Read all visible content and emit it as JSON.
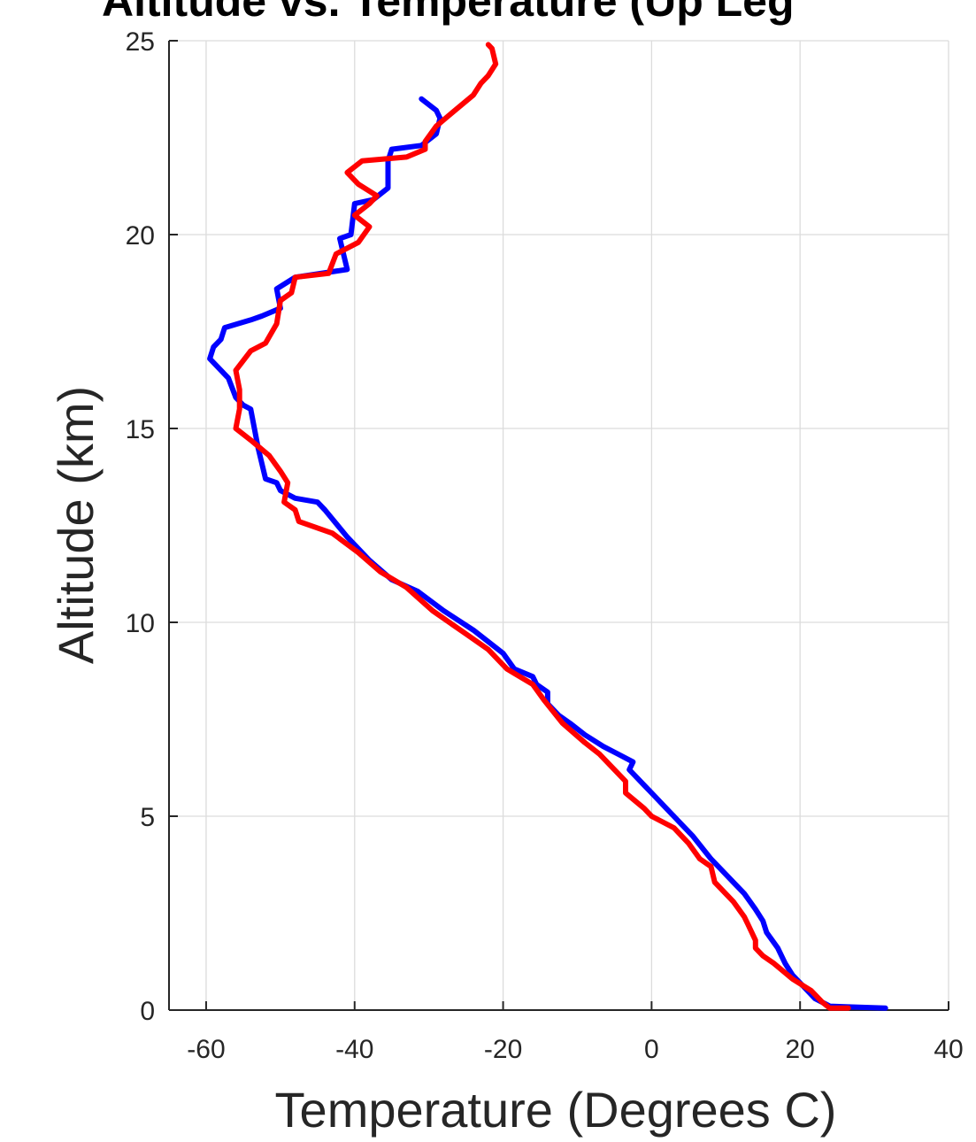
{
  "chart_data": {
    "type": "line",
    "title": "Altitude vs. Temperature (Up Leg",
    "xlabel": "Temperature (Degrees C)",
    "ylabel": "Altitude (km)",
    "xlim": [
      -65,
      40
    ],
    "ylim": [
      0,
      25
    ],
    "xticks": [
      -60,
      -40,
      -20,
      0,
      20,
      40
    ],
    "yticks": [
      0,
      5,
      10,
      15,
      20,
      25
    ],
    "xtick_labels": [
      "-60",
      "-40",
      "-20",
      "0",
      "20",
      "40"
    ],
    "ytick_labels": [
      "0",
      "5",
      "10",
      "15",
      "20",
      "25"
    ],
    "grid": true,
    "series": [
      {
        "color": "#0000ff",
        "points": [
          [
            31.5,
            0.05
          ],
          [
            27.0,
            0.08
          ],
          [
            24.0,
            0.1
          ],
          [
            22.0,
            0.3
          ],
          [
            20.5,
            0.6
          ],
          [
            19.0,
            0.9
          ],
          [
            18.0,
            1.2
          ],
          [
            17.0,
            1.6
          ],
          [
            15.5,
            2.0
          ],
          [
            15.0,
            2.3
          ],
          [
            14.0,
            2.6
          ],
          [
            12.5,
            3.0
          ],
          [
            11.0,
            3.3
          ],
          [
            9.0,
            3.7
          ],
          [
            8.0,
            3.9
          ],
          [
            5.5,
            4.5
          ],
          [
            3.5,
            4.9
          ],
          [
            1.5,
            5.3
          ],
          [
            0.0,
            5.6
          ],
          [
            -1.0,
            5.8
          ],
          [
            -3.0,
            6.2
          ],
          [
            -2.5,
            6.4
          ],
          [
            -4.5,
            6.6
          ],
          [
            -6.5,
            6.8
          ],
          [
            -9.0,
            7.1
          ],
          [
            -11.0,
            7.4
          ],
          [
            -12.5,
            7.6
          ],
          [
            -14.0,
            7.9
          ],
          [
            -14.0,
            8.2
          ],
          [
            -15.5,
            8.4
          ],
          [
            -16.0,
            8.6
          ],
          [
            -18.5,
            8.8
          ],
          [
            -20.0,
            9.2
          ],
          [
            -24.0,
            9.8
          ],
          [
            -28.0,
            10.3
          ],
          [
            -31.5,
            10.8
          ],
          [
            -35.0,
            11.1
          ],
          [
            -38.0,
            11.6
          ],
          [
            -41.0,
            12.2
          ],
          [
            -44.0,
            12.9
          ],
          [
            -45.0,
            13.1
          ],
          [
            -48.0,
            13.2
          ],
          [
            -50.0,
            13.4
          ],
          [
            -50.5,
            13.6
          ],
          [
            -52.0,
            13.7
          ],
          [
            -53.0,
            14.5
          ],
          [
            -54.0,
            15.5
          ],
          [
            -55.0,
            15.6
          ],
          [
            -56.0,
            15.8
          ],
          [
            -57.0,
            16.3
          ],
          [
            -59.5,
            16.8
          ],
          [
            -59.0,
            17.1
          ],
          [
            -58.0,
            17.3
          ],
          [
            -57.5,
            17.6
          ],
          [
            -54.0,
            17.8
          ],
          [
            -52.5,
            17.9
          ],
          [
            -50.0,
            18.1
          ],
          [
            -50.5,
            18.6
          ],
          [
            -48.0,
            18.9
          ],
          [
            -41.0,
            19.1
          ],
          [
            -42.0,
            19.9
          ],
          [
            -40.5,
            20.0
          ],
          [
            -40.0,
            20.8
          ],
          [
            -37.5,
            20.9
          ],
          [
            -35.5,
            21.2
          ],
          [
            -35.5,
            21.9
          ],
          [
            -35.0,
            22.2
          ],
          [
            -31.0,
            22.3
          ],
          [
            -29.0,
            22.6
          ],
          [
            -28.5,
            23.0
          ],
          [
            -29.0,
            23.2
          ],
          [
            -31.0,
            23.5
          ]
        ]
      },
      {
        "color": "#ff0000",
        "points": [
          [
            26.5,
            0.05
          ],
          [
            24.0,
            0.05
          ],
          [
            23.0,
            0.2
          ],
          [
            21.5,
            0.5
          ],
          [
            19.0,
            0.8
          ],
          [
            16.5,
            1.2
          ],
          [
            15.0,
            1.4
          ],
          [
            14.0,
            1.6
          ],
          [
            14.0,
            1.8
          ],
          [
            13.0,
            2.2
          ],
          [
            12.5,
            2.4
          ],
          [
            11.0,
            2.8
          ],
          [
            8.5,
            3.3
          ],
          [
            8.0,
            3.7
          ],
          [
            6.5,
            3.9
          ],
          [
            5.0,
            4.3
          ],
          [
            3.0,
            4.7
          ],
          [
            0.0,
            5.0
          ],
          [
            -1.0,
            5.2
          ],
          [
            -3.5,
            5.6
          ],
          [
            -3.5,
            5.9
          ],
          [
            -5.0,
            6.2
          ],
          [
            -7.0,
            6.6
          ],
          [
            -9.0,
            6.9
          ],
          [
            -12.0,
            7.4
          ],
          [
            -14.5,
            8.0
          ],
          [
            -16.0,
            8.4
          ],
          [
            -19.5,
            8.8
          ],
          [
            -22.0,
            9.3
          ],
          [
            -25.0,
            9.7
          ],
          [
            -29.5,
            10.3
          ],
          [
            -33.0,
            10.9
          ],
          [
            -36.5,
            11.3
          ],
          [
            -39.5,
            11.8
          ],
          [
            -43.0,
            12.3
          ],
          [
            -47.5,
            12.6
          ],
          [
            -48.0,
            12.9
          ],
          [
            -49.5,
            13.1
          ],
          [
            -49.0,
            13.6
          ],
          [
            -50.0,
            13.9
          ],
          [
            -51.5,
            14.3
          ],
          [
            -54.0,
            14.7
          ],
          [
            -56.0,
            15.0
          ],
          [
            -55.5,
            15.5
          ],
          [
            -55.5,
            16.0
          ],
          [
            -56.0,
            16.5
          ],
          [
            -54.0,
            17.0
          ],
          [
            -52.0,
            17.2
          ],
          [
            -50.5,
            17.7
          ],
          [
            -50.0,
            18.3
          ],
          [
            -48.5,
            18.5
          ],
          [
            -48.0,
            18.9
          ],
          [
            -43.5,
            19.0
          ],
          [
            -42.5,
            19.5
          ],
          [
            -39.5,
            19.8
          ],
          [
            -38.0,
            20.2
          ],
          [
            -40.0,
            20.5
          ],
          [
            -38.0,
            20.8
          ],
          [
            -37.0,
            21.0
          ],
          [
            -39.5,
            21.3
          ],
          [
            -41.0,
            21.6
          ],
          [
            -39.0,
            21.9
          ],
          [
            -33.0,
            22.0
          ],
          [
            -30.5,
            22.2
          ],
          [
            -30.5,
            22.4
          ],
          [
            -29.0,
            22.8
          ],
          [
            -26.5,
            23.2
          ],
          [
            -24.0,
            23.6
          ],
          [
            -23.0,
            23.9
          ],
          [
            -22.0,
            24.1
          ],
          [
            -21.0,
            24.4
          ],
          [
            -21.5,
            24.8
          ],
          [
            -22.0,
            24.9
          ]
        ]
      }
    ]
  }
}
